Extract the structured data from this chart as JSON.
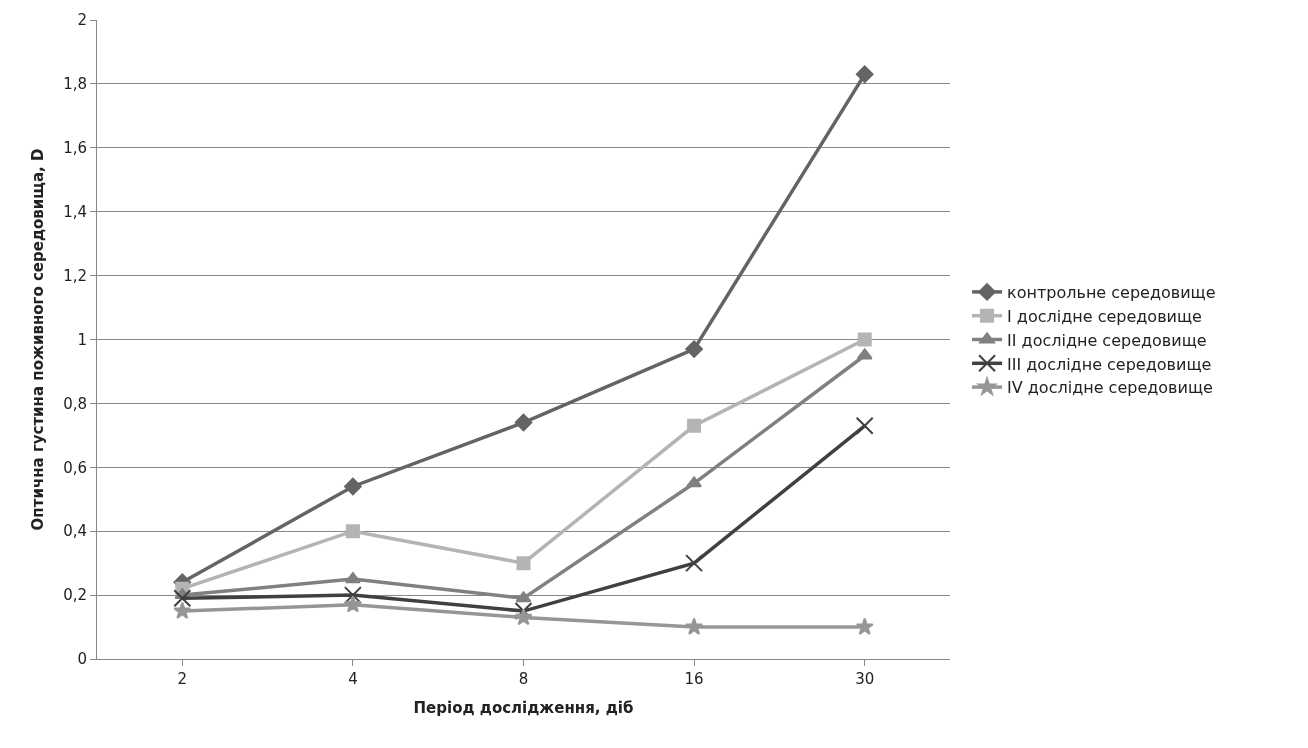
{
  "chart_data": {
    "type": "line",
    "xlabel": "Період дослідження, діб",
    "ylabel": "Оптична густина поживного середовища, D",
    "categories": [
      "2",
      "4",
      "8",
      "16",
      "30"
    ],
    "series": [
      {
        "name": "контрольне середовище",
        "color": "#646464",
        "marker": "diamond",
        "values": [
          0.24,
          0.54,
          0.74,
          0.97,
          1.83
        ]
      },
      {
        "name": "I дослідне середовище",
        "color": "#b4b4b4",
        "marker": "square",
        "values": [
          0.22,
          0.4,
          0.3,
          0.73,
          1.0
        ]
      },
      {
        "name": "II дослідне середовище",
        "color": "#808080",
        "marker": "triangle",
        "values": [
          0.2,
          0.25,
          0.19,
          0.55,
          0.95
        ]
      },
      {
        "name": "III дослідне середовище",
        "color": "#404040",
        "marker": "cross",
        "values": [
          0.19,
          0.2,
          0.15,
          0.3,
          0.73
        ]
      },
      {
        "name": "IV дослідне середовище",
        "color": "#969696",
        "marker": "star",
        "values": [
          0.15,
          0.17,
          0.13,
          0.1,
          0.1
        ]
      }
    ],
    "ylim": [
      0,
      2
    ],
    "yticks": [
      0,
      {
        "value": 0.2,
        "label": "0,2"
      },
      {
        "value": 0.4,
        "label": "0,4"
      },
      {
        "value": 0.6,
        "label": "0,6"
      },
      {
        "value": 0.8,
        "label": "0,8"
      },
      1,
      {
        "value": 1.2,
        "label": "1,2"
      },
      {
        "value": 1.4,
        "label": "1,4"
      },
      {
        "value": 1.6,
        "label": "1,6"
      },
      {
        "value": 1.8,
        "label": "1,8"
      },
      2
    ],
    "grid": "y",
    "legend": "right",
    "line_style": "solid"
  }
}
